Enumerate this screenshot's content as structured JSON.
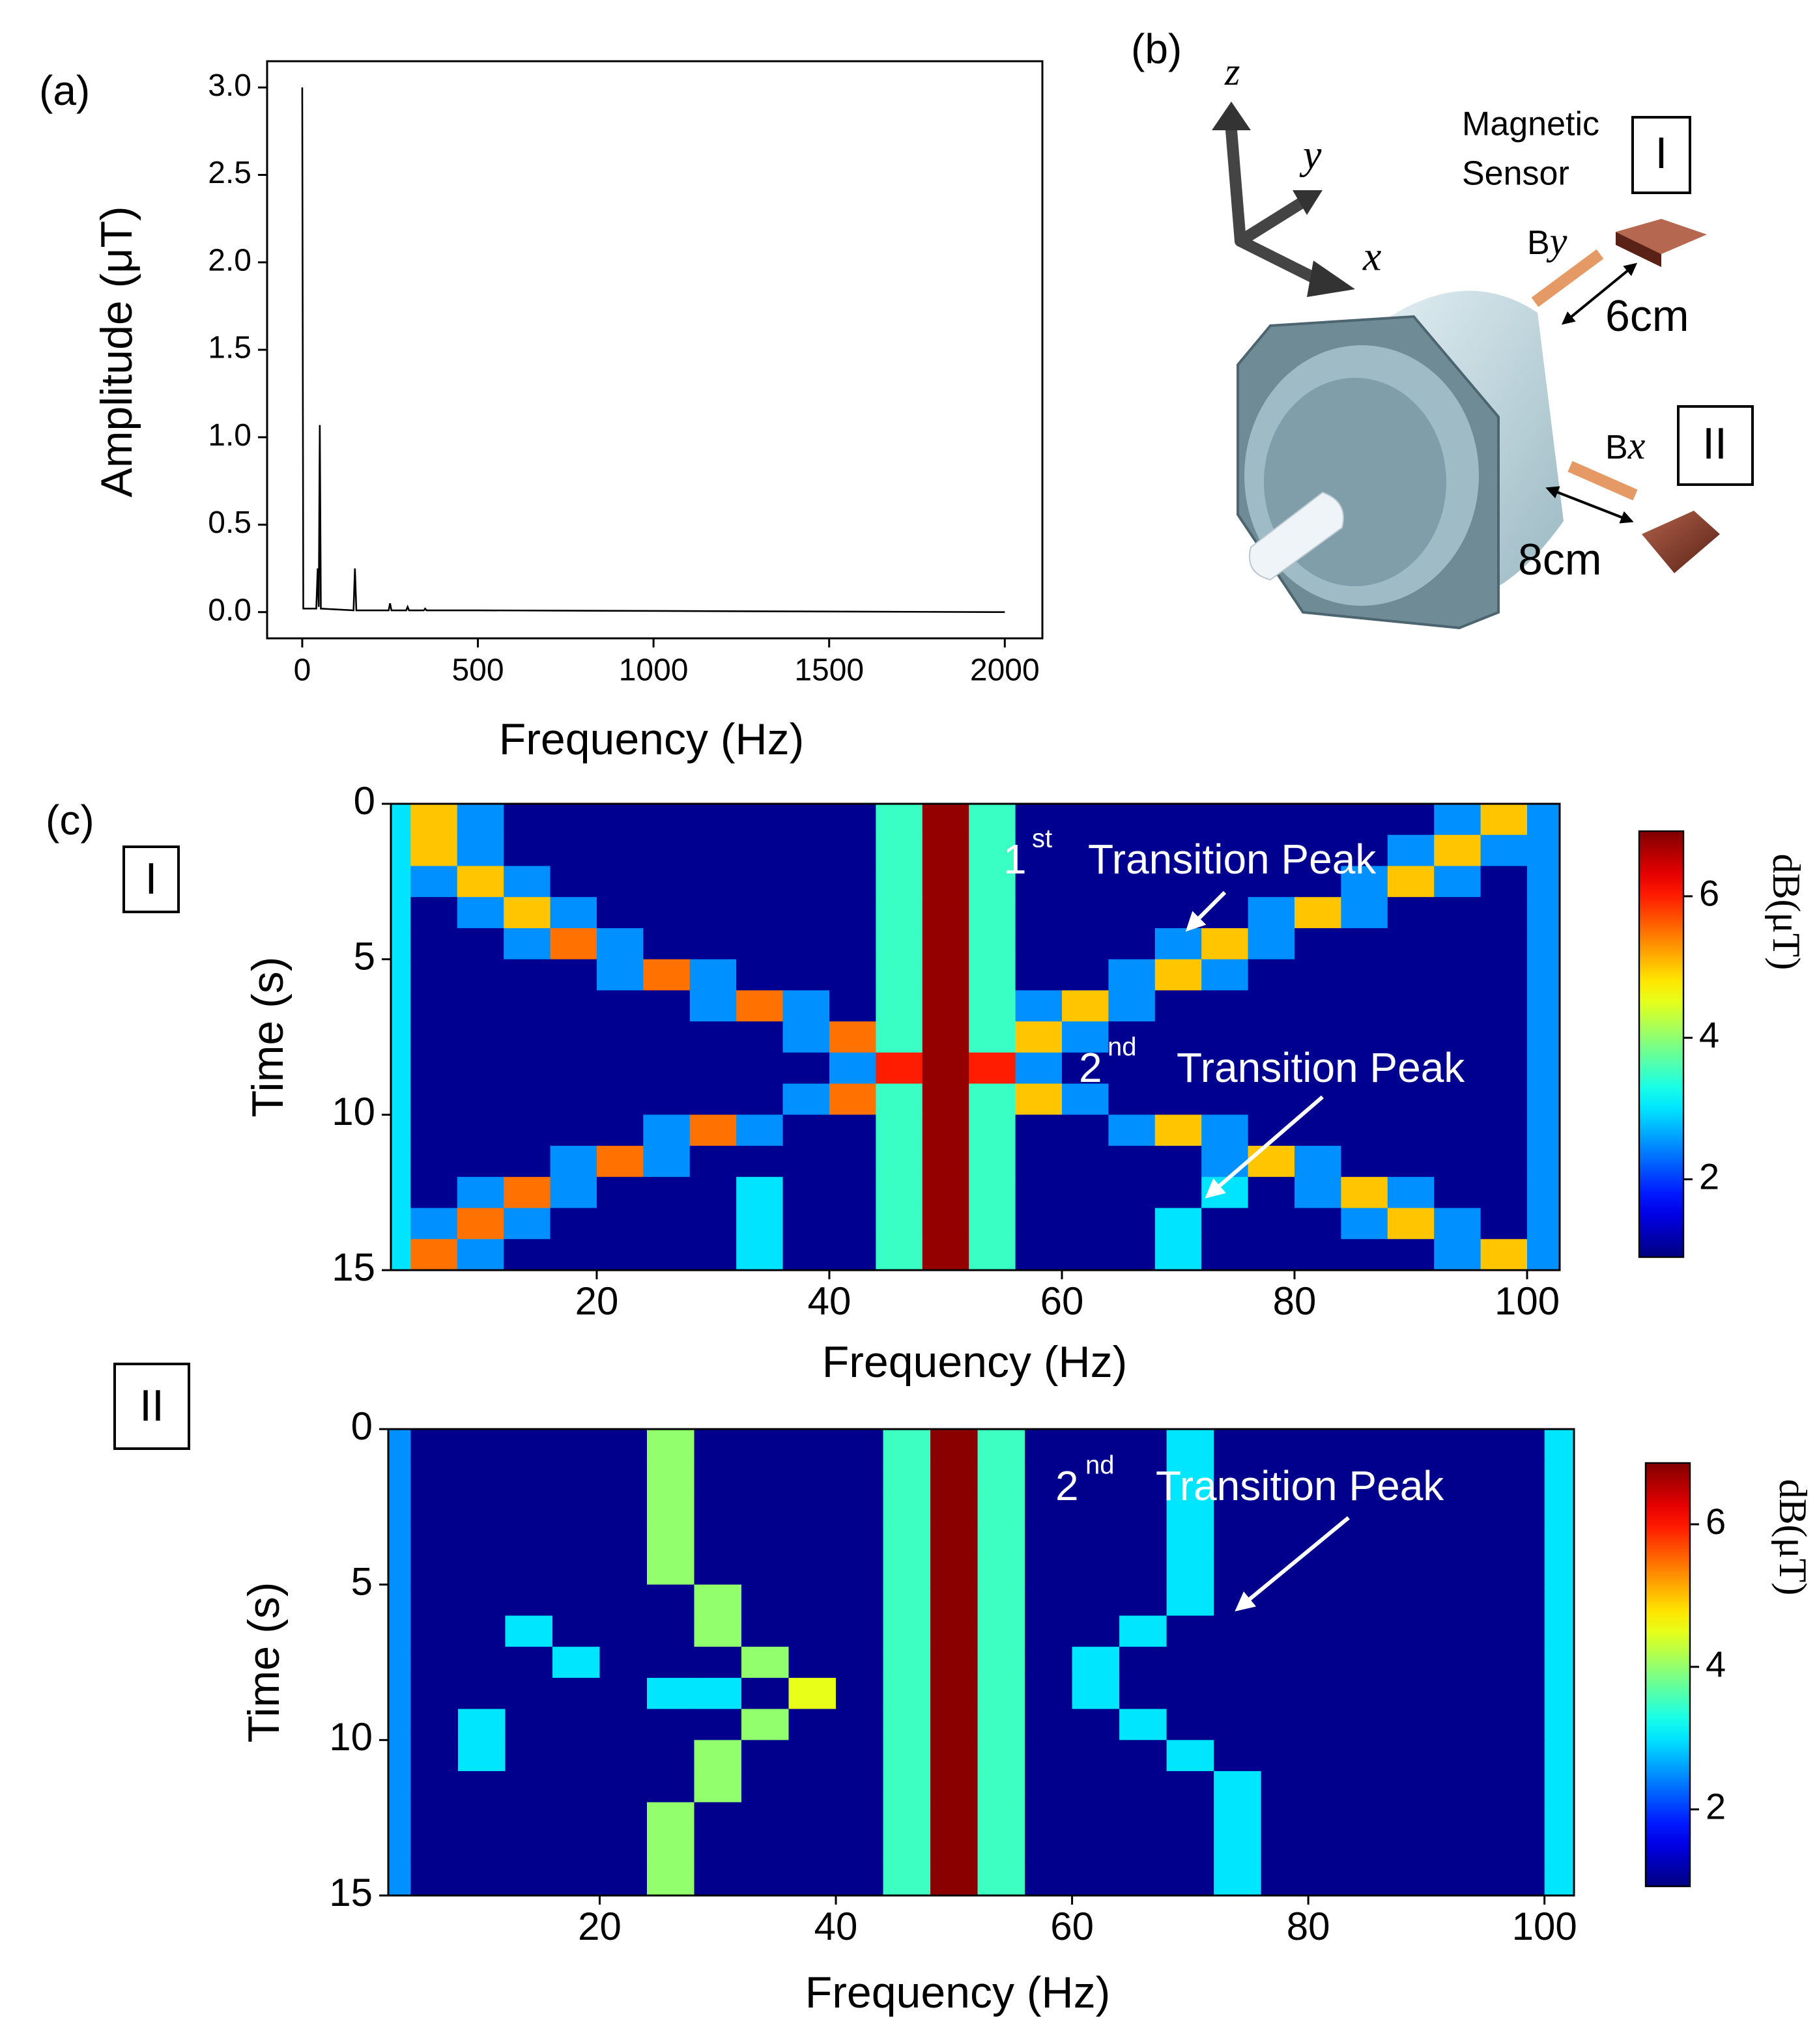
{
  "chart_data": [
    {
      "type": "line",
      "label": "(a)",
      "xlabel": "Frequency (Hz)",
      "ylabel": "Amplitude (μT)",
      "color": "#000000",
      "x": [
        0,
        3,
        40,
        44,
        47,
        50,
        53,
        146,
        150,
        154,
        246,
        250,
        254,
        296,
        300,
        304,
        346,
        350,
        354,
        500,
        2000
      ],
      "values": [
        3.0,
        0.02,
        0.02,
        0.25,
        0.03,
        1.07,
        0.02,
        0.01,
        0.25,
        0.01,
        0.01,
        0.05,
        0.01,
        0.01,
        0.03,
        0.01,
        0.01,
        0.02,
        0.01,
        0.01,
        0.0
      ],
      "xlim": [
        -100,
        2107
      ],
      "ylim": [
        -0.15,
        3.15
      ],
      "xticks": [
        0,
        500,
        1000,
        1500,
        2000
      ],
      "yticks": [
        {
          "value": 0,
          "label": "0.0"
        },
        {
          "value": 0.5,
          "label": "0.5"
        },
        {
          "value": 1,
          "label": "1.0"
        },
        {
          "value": 1.5,
          "label": "1.5"
        },
        {
          "value": 2,
          "label": "2.0"
        },
        {
          "value": 2.5,
          "label": "2.5"
        },
        {
          "value": 3,
          "label": "3.0"
        }
      ]
    },
    {
      "type": "heatmap",
      "label": "(c)",
      "sensor": "I",
      "xlabel": "Frequency (Hz)",
      "ylabel": "Time (s)",
      "colormap": "jet",
      "clabel": "dB(μT)",
      "x": [
        2,
        6,
        10,
        14,
        18,
        22,
        26,
        30,
        34,
        38,
        42,
        46,
        50,
        54,
        58,
        62,
        66,
        70,
        74,
        78,
        82,
        86,
        90,
        94,
        98,
        102
      ],
      "y": [
        0.5,
        1.5,
        2.5,
        3.5,
        4.5,
        5.5,
        6.5,
        7.5,
        8.5,
        9.5,
        10.5,
        11.5,
        12.5,
        13.5,
        14.5
      ],
      "values": [
        [
          3,
          5,
          2.5,
          1,
          1,
          1,
          1,
          1,
          1,
          1,
          1,
          3.5,
          6.8,
          3.5,
          1,
          1,
          1,
          1,
          1,
          1,
          1,
          1,
          1,
          2.5,
          5,
          2.5
        ],
        [
          3,
          5,
          2.5,
          1,
          1,
          1,
          1,
          1,
          1,
          1,
          1,
          3.5,
          6.8,
          3.5,
          1,
          1,
          1,
          1,
          1,
          1,
          1,
          1,
          2.5,
          5,
          2.5,
          2.5
        ],
        [
          3,
          2.5,
          5,
          2.5,
          1,
          1,
          1,
          1,
          1,
          1,
          1,
          3.5,
          6.8,
          3.5,
          1,
          1,
          1,
          1,
          1,
          1,
          1,
          2.5,
          5,
          2.5,
          1,
          2.5
        ],
        [
          3,
          1,
          2.5,
          5,
          2.5,
          1,
          1,
          1,
          1,
          1,
          1,
          3.5,
          6.8,
          3.5,
          1,
          1,
          1,
          1,
          1,
          2.5,
          5,
          2.5,
          1,
          1,
          1,
          2.5
        ],
        [
          3,
          1,
          1,
          2.5,
          5.5,
          2.5,
          1,
          1,
          1,
          1,
          1,
          3.5,
          6.8,
          3.5,
          1,
          1,
          1,
          2.5,
          5,
          2.5,
          1,
          1,
          1,
          1,
          1,
          2.5
        ],
        [
          3,
          1,
          1,
          1,
          1,
          2.5,
          5.5,
          2.5,
          1,
          1,
          1,
          3.5,
          6.8,
          3.5,
          1,
          1,
          2.5,
          5,
          2.5,
          1,
          1,
          1,
          1,
          1,
          1,
          2.5
        ],
        [
          3,
          1,
          1,
          1,
          1,
          1,
          1,
          2.5,
          5.5,
          2.5,
          1,
          3.5,
          6.8,
          3.5,
          2.5,
          5,
          2.5,
          1,
          1,
          1,
          1,
          1,
          1,
          1,
          1,
          2.5
        ],
        [
          3,
          1,
          1,
          1,
          1,
          1,
          1,
          1,
          1,
          2.5,
          5.5,
          3.5,
          6.8,
          3.5,
          5,
          2.5,
          1,
          1,
          1,
          1,
          1,
          1,
          1,
          1,
          1,
          2.5
        ],
        [
          3,
          1,
          1,
          1,
          1,
          1,
          1,
          1,
          1,
          1,
          2.5,
          6,
          6.8,
          6,
          2.5,
          1,
          1,
          1,
          1,
          1,
          1,
          1,
          1,
          1,
          1,
          2.5
        ],
        [
          3,
          1,
          1,
          1,
          1,
          1,
          1,
          1,
          1,
          2.5,
          5.5,
          3.5,
          6.8,
          3.5,
          5,
          2.5,
          1,
          1,
          1,
          1,
          1,
          1,
          1,
          1,
          1,
          2.5
        ],
        [
          3,
          1,
          1,
          1,
          1,
          1,
          2.5,
          5.5,
          2.5,
          1,
          1,
          3.5,
          6.8,
          3.5,
          1,
          1,
          2.5,
          5,
          2.5,
          1,
          1,
          1,
          1,
          1,
          1,
          2.5
        ],
        [
          3,
          1,
          1,
          1,
          2.5,
          5.5,
          2.5,
          1,
          1,
          1,
          1,
          3.5,
          6.8,
          3.5,
          1,
          1,
          1,
          1,
          2.5,
          5,
          2.5,
          1,
          1,
          1,
          1,
          2.5
        ],
        [
          3,
          1,
          2.5,
          5.5,
          2.5,
          1,
          1,
          1,
          3,
          1,
          1,
          3.5,
          6.8,
          3.5,
          1,
          1,
          1,
          1,
          3,
          1,
          2.5,
          5,
          2.5,
          1,
          1,
          2.5
        ],
        [
          3,
          2.5,
          5.5,
          2.5,
          1,
          1,
          1,
          1,
          3,
          1,
          1,
          3.5,
          6.8,
          3.5,
          1,
          1,
          1,
          3,
          1,
          1,
          1,
          2.5,
          5,
          2.5,
          1,
          2.5
        ],
        [
          3,
          5.5,
          2.5,
          1,
          1,
          1,
          1,
          1,
          3,
          1,
          1,
          3.5,
          6.8,
          3.5,
          1,
          1,
          1,
          3,
          1,
          1,
          1,
          1,
          1,
          2.5,
          5,
          2.5
        ]
      ],
      "xlim": [
        2.3,
        102.8
      ],
      "ylim": [
        0,
        15
      ],
      "yinvert": true,
      "xticks": [
        20,
        40,
        60,
        80,
        100
      ],
      "yticks": [
        0,
        5,
        10,
        15
      ],
      "clim": [
        0.9,
        6.92
      ],
      "cticks": [
        2,
        4,
        6
      ],
      "annotations": [
        {
          "label": "1",
          "sup": "st",
          "text": "Transition Peak"
        },
        {
          "label": "2",
          "sup": "nd",
          "text": "Transition Peak"
        }
      ]
    },
    {
      "type": "heatmap",
      "sensor": "II",
      "xlabel": "Frequency (Hz)",
      "ylabel": "Time (s)",
      "colormap": "jet",
      "clabel": "dB(μT)",
      "x": [
        2,
        6,
        10,
        14,
        18,
        22,
        26,
        30,
        34,
        38,
        42,
        46,
        50,
        54,
        58,
        62,
        66,
        70,
        74,
        78,
        82,
        86,
        90,
        94,
        98,
        102
      ],
      "y": [
        0.5,
        1.5,
        2.5,
        3.5,
        4.5,
        5.5,
        6.5,
        7.5,
        8.5,
        9.5,
        10.5,
        11.5,
        12.5,
        13.5,
        14.5
      ],
      "values": [
        [
          2.5,
          1,
          1,
          1,
          1,
          1,
          4,
          1,
          1,
          1,
          1,
          3.5,
          6.8,
          3.5,
          1,
          1,
          1,
          3,
          1,
          1,
          1,
          1,
          1,
          1,
          1,
          3
        ],
        [
          2.5,
          1,
          1,
          1,
          1,
          1,
          4,
          1,
          1,
          1,
          1,
          3.5,
          6.8,
          3.5,
          1,
          1,
          1,
          3,
          1,
          1,
          1,
          1,
          1,
          1,
          1,
          3
        ],
        [
          2.5,
          1,
          1,
          1,
          1,
          1,
          4,
          1,
          1,
          1,
          1,
          3.5,
          6.8,
          3.5,
          1,
          1,
          1,
          3,
          1,
          1,
          1,
          1,
          1,
          1,
          1,
          3
        ],
        [
          2.5,
          1,
          1,
          1,
          1,
          1,
          4,
          1,
          1,
          1,
          1,
          3.5,
          6.8,
          3.5,
          1,
          1,
          1,
          3,
          1,
          1,
          1,
          1,
          1,
          1,
          1,
          3
        ],
        [
          2.5,
          1,
          1,
          1,
          1,
          1,
          4,
          1,
          1,
          1,
          1,
          3.5,
          6.8,
          3.5,
          1,
          1,
          1,
          3,
          1,
          1,
          1,
          1,
          1,
          1,
          1,
          3
        ],
        [
          2.5,
          1,
          1,
          1,
          1,
          1,
          1,
          4,
          1,
          1,
          1,
          3.5,
          6.8,
          3.5,
          1,
          1,
          1,
          3,
          1,
          1,
          1,
          1,
          1,
          1,
          1,
          3
        ],
        [
          2.5,
          1,
          1,
          3,
          1,
          1,
          1,
          4,
          1,
          1,
          1,
          3.5,
          6.8,
          3.5,
          1,
          1,
          3,
          1,
          1,
          1,
          1,
          1,
          1,
          1,
          1,
          3
        ],
        [
          2.5,
          1,
          1,
          1,
          3,
          1,
          1,
          1,
          4,
          1,
          1,
          3.5,
          6.8,
          3.5,
          1,
          3,
          1,
          1,
          1,
          1,
          1,
          1,
          1,
          1,
          1,
          3
        ],
        [
          2.5,
          1,
          1,
          1,
          1,
          1,
          3,
          3,
          1,
          4.5,
          1,
          3.5,
          6.8,
          3.5,
          1,
          3,
          1,
          1,
          1,
          1,
          1,
          1,
          1,
          1,
          1,
          3
        ],
        [
          2.5,
          1,
          3,
          1,
          1,
          1,
          1,
          1,
          4,
          1,
          1,
          3.5,
          6.8,
          3.5,
          1,
          1,
          3,
          1,
          1,
          1,
          1,
          1,
          1,
          1,
          1,
          3
        ],
        [
          2.5,
          1,
          3,
          1,
          1,
          1,
          1,
          4,
          1,
          1,
          1,
          3.5,
          6.8,
          3.5,
          1,
          1,
          1,
          3,
          1,
          1,
          1,
          1,
          1,
          1,
          1,
          3
        ],
        [
          2.5,
          1,
          1,
          1,
          1,
          1,
          1,
          4,
          1,
          1,
          1,
          3.5,
          6.8,
          3.5,
          1,
          1,
          1,
          1,
          3,
          1,
          1,
          1,
          1,
          1,
          1,
          3
        ],
        [
          2.5,
          1,
          1,
          1,
          1,
          1,
          4,
          1,
          1,
          1,
          1,
          3.5,
          6.8,
          3.5,
          1,
          1,
          1,
          1,
          3,
          1,
          1,
          1,
          1,
          1,
          1,
          3
        ],
        [
          2.5,
          1,
          1,
          1,
          1,
          1,
          4,
          1,
          1,
          1,
          1,
          3.5,
          6.8,
          3.5,
          1,
          1,
          1,
          1,
          3,
          1,
          1,
          1,
          1,
          1,
          1,
          3
        ],
        [
          2.5,
          1,
          1,
          1,
          1,
          1,
          4,
          1,
          1,
          1,
          1,
          3.5,
          6.8,
          3.5,
          1,
          1,
          1,
          1,
          3,
          1,
          1,
          1,
          1,
          1,
          1,
          3
        ]
      ],
      "xlim": [
        2.1,
        102.5
      ],
      "ylim": [
        0,
        15
      ],
      "yinvert": true,
      "xticks": [
        20,
        40,
        60,
        80,
        100
      ],
      "yticks": [
        0,
        5,
        10,
        15
      ],
      "clim": [
        0.92,
        6.86
      ],
      "cticks": [
        2,
        4,
        6
      ],
      "annotations": [
        {
          "label": "2",
          "sup": "nd",
          "text": "Transition Peak"
        }
      ]
    }
  ],
  "diagram": {
    "label": "(b)",
    "axes": [
      "z",
      "y",
      "x"
    ],
    "sensor_label": [
      "Magnetic",
      "Sensor"
    ],
    "sensors": [
      {
        "id": "I",
        "field": "B",
        "component": "y",
        "distance": "6cm"
      },
      {
        "id": "II",
        "field": "B",
        "component": "x",
        "distance": "8cm"
      }
    ]
  }
}
